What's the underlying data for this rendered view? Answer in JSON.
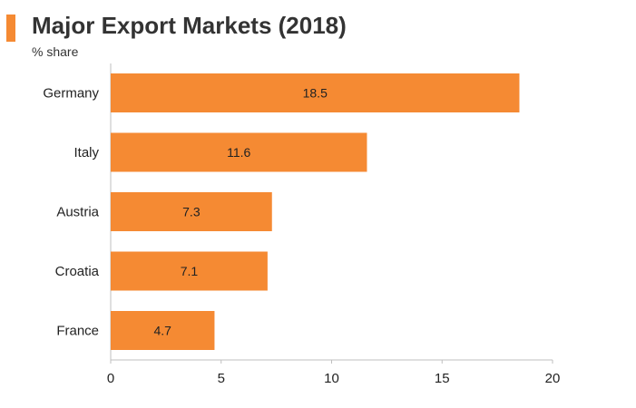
{
  "header": {
    "title": "Major Export Markets (2018)",
    "subtitle": "% share",
    "accent_color": "#f58a33"
  },
  "chart_data": {
    "type": "bar",
    "orientation": "horizontal",
    "title": "Major Export Markets (2018)",
    "subtitle": "% share",
    "categories": [
      "Germany",
      "Italy",
      "Austria",
      "Croatia",
      "France"
    ],
    "values": [
      18.5,
      11.6,
      7.3,
      7.1,
      4.7
    ],
    "data_labels": [
      "18.5",
      "11.6",
      "7.3",
      "7.1",
      "4.7"
    ],
    "xlim": [
      0,
      20
    ],
    "x_ticks": [
      0,
      5,
      10,
      15,
      20
    ],
    "x_tick_labels": [
      "0",
      "5",
      "10",
      "15",
      "20"
    ],
    "grid": false,
    "legend": "none",
    "bar_color": "#f58a33"
  }
}
